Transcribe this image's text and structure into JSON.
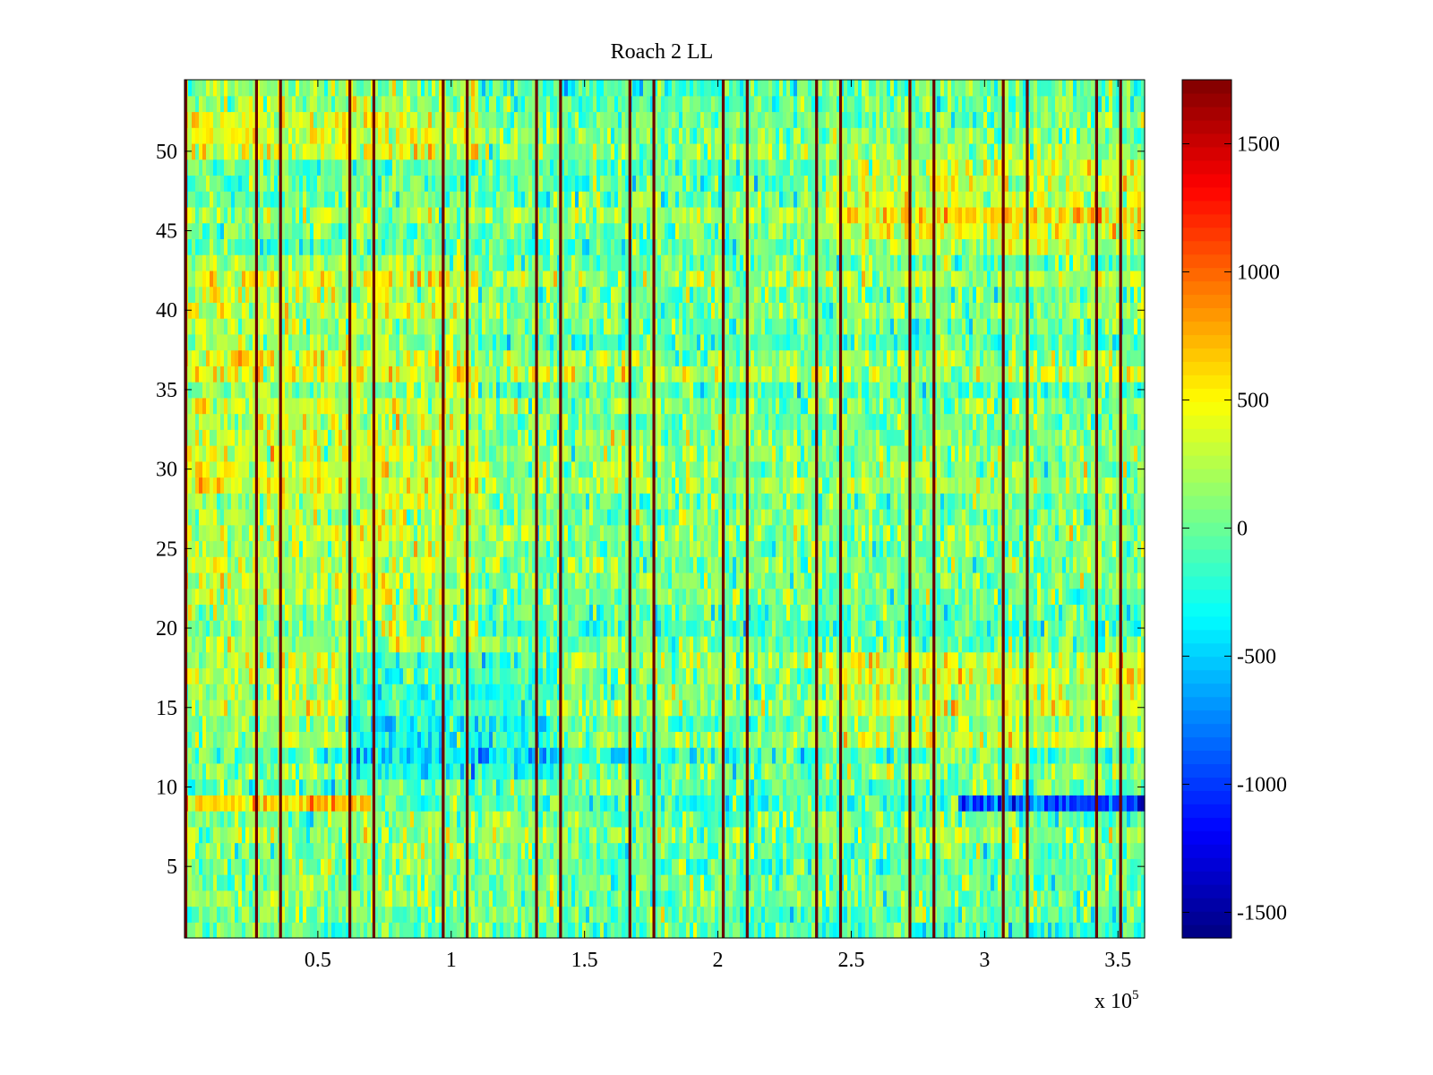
{
  "chart_data": {
    "type": "heatmap",
    "title": "Roach 2 LL",
    "xlabel": "",
    "ylabel": "",
    "x_exponent_label": "x 10",
    "x_exponent_power": "5",
    "xlim": [
      0,
      3.6
    ],
    "ylim": [
      0.5,
      54.5
    ],
    "rows": 54,
    "x_ticks": [
      {
        "value": 0.5,
        "label": "0.5"
      },
      {
        "value": 1,
        "label": "1"
      },
      {
        "value": 1.5,
        "label": "1.5"
      },
      {
        "value": 2,
        "label": "2"
      },
      {
        "value": 2.5,
        "label": "2.5"
      },
      {
        "value": 3,
        "label": "3"
      },
      {
        "value": 3.5,
        "label": "3.5"
      }
    ],
    "y_ticks": [
      {
        "value": 5,
        "label": "5"
      },
      {
        "value": 10,
        "label": "10"
      },
      {
        "value": 15,
        "label": "15"
      },
      {
        "value": 20,
        "label": "20"
      },
      {
        "value": 25,
        "label": "25"
      },
      {
        "value": 30,
        "label": "30"
      },
      {
        "value": 35,
        "label": "35"
      },
      {
        "value": 40,
        "label": "40"
      },
      {
        "value": 45,
        "label": "45"
      },
      {
        "value": 50,
        "label": "50"
      }
    ],
    "colorbar": {
      "colormap": "jet",
      "clim": [
        -1600,
        1750
      ],
      "ticks": [
        {
          "value": 1500,
          "label": "1500"
        },
        {
          "value": 1000,
          "label": "1000"
        },
        {
          "value": 500,
          "label": "500"
        },
        {
          "value": 0,
          "label": "0"
        },
        {
          "value": -500,
          "label": "-500"
        },
        {
          "value": -1000,
          "label": "-1000"
        },
        {
          "value": -1500,
          "label": "-1500"
        }
      ]
    },
    "dark_vertical_lines_x": [
      0.005,
      0.27,
      0.36,
      0.62,
      0.71,
      0.97,
      1.06,
      1.32,
      1.41,
      1.67,
      1.76,
      2.02,
      2.11,
      2.37,
      2.46,
      2.72,
      2.81,
      3.07,
      3.16,
      3.42,
      3.51
    ],
    "row_bias": [
      {
        "row_from": 46,
        "row_to": 54,
        "segments": [
          [
            0,
            1.1,
            350
          ],
          [
            1.1,
            2.4,
            50
          ],
          [
            2.4,
            3.6,
            100
          ]
        ]
      },
      {
        "row_from": 44,
        "row_to": 49,
        "segments": [
          [
            0,
            2.4,
            0
          ],
          [
            2.4,
            3.6,
            350
          ]
        ]
      },
      {
        "row_from": 19,
        "row_to": 43,
        "segments": [
          [
            0,
            1.1,
            280
          ],
          [
            1.1,
            3.6,
            60
          ]
        ]
      },
      {
        "row_from": 11,
        "row_to": 18,
        "segments": [
          [
            0,
            0.6,
            150
          ],
          [
            0.6,
            1.4,
            -250
          ],
          [
            1.4,
            2.4,
            50
          ],
          [
            2.4,
            3.6,
            250
          ]
        ]
      },
      {
        "row_from": 9,
        "row_to": 9,
        "segments": [
          [
            0,
            0.7,
            800
          ],
          [
            0.7,
            2.9,
            50
          ],
          [
            2.9,
            3.6,
            -800
          ]
        ]
      },
      {
        "row_from": 7,
        "row_to": 7,
        "segments": [
          [
            0,
            2.4,
            0
          ],
          [
            2.4,
            3.6,
            600
          ]
        ]
      },
      {
        "row_from": 1,
        "row_to": 8,
        "segments": [
          [
            0,
            1.4,
            100
          ],
          [
            1.4,
            3.6,
            0
          ]
        ]
      }
    ],
    "value_spread": 380,
    "colors": {
      "dark_line": "#6b0000",
      "axis": "#000000"
    }
  }
}
